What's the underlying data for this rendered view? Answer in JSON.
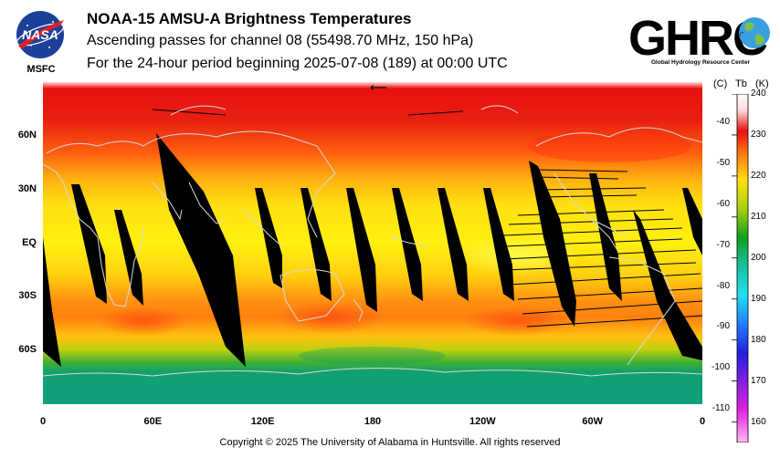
{
  "header": {
    "title": "NOAA-15 AMSU-A Brightness Temperatures",
    "subtitle": "Ascending passes for channel 08 (55498.70 MHz, 150 hPa)",
    "period": "For the 24-hour period beginning 2025-07-08 (189) at 00:00 UTC"
  },
  "logos": {
    "nasa": {
      "text": "NASA",
      "label": "MSFC",
      "icon": "nasa-meatball-icon"
    },
    "ghrc": {
      "text": "GHRC",
      "subtitle": "Global Hydrology Resource Center",
      "icon": "globe-icon"
    }
  },
  "map": {
    "projection": "equirectangular",
    "lon_range": [
      0,
      360
    ],
    "lat_range": [
      -90,
      90
    ],
    "lat_labels": [
      "60N",
      "30N",
      "EQ",
      "30S",
      "60S"
    ],
    "lat_values": [
      60,
      30,
      0,
      -30,
      -60
    ],
    "lon_labels": [
      "0",
      "60E",
      "120E",
      "180",
      "120W",
      "60W",
      "0"
    ],
    "lon_values": [
      0,
      60,
      120,
      180,
      240,
      300,
      360
    ],
    "no_data_color": "#000000",
    "coastline_color": "#d8d8d8",
    "orbit_direction_marker": "⟵"
  },
  "colorbar": {
    "unit_c": "(C)",
    "unit_tb": "Tb",
    "unit_k": "(K)",
    "celsius_ticks": [
      "-40",
      "-50",
      "-60",
      "-70",
      "-80",
      "-90",
      "-100",
      "-110"
    ],
    "celsius_values": [
      -40,
      -50,
      -60,
      -70,
      -80,
      -90,
      -100,
      -110
    ],
    "kelvin_ticks": [
      "240",
      "230",
      "220",
      "210",
      "200",
      "190",
      "180",
      "170",
      "160"
    ],
    "kelvin_values": [
      240,
      230,
      220,
      210,
      200,
      190,
      180,
      170,
      160
    ],
    "range_k": [
      155,
      240
    ],
    "color_stops": [
      {
        "k": 240,
        "color": "#ffffff"
      },
      {
        "k": 236,
        "color": "#ffd8d8"
      },
      {
        "k": 231,
        "color": "#e81010"
      },
      {
        "k": 225,
        "color": "#ff8010"
      },
      {
        "k": 219,
        "color": "#ffe010"
      },
      {
        "k": 212,
        "color": "#a8d010"
      },
      {
        "k": 205,
        "color": "#10a020"
      },
      {
        "k": 198,
        "color": "#18c0a0"
      },
      {
        "k": 191,
        "color": "#20e0f0"
      },
      {
        "k": 184,
        "color": "#2080ff"
      },
      {
        "k": 177,
        "color": "#2020e0"
      },
      {
        "k": 170,
        "color": "#8020e0"
      },
      {
        "k": 163,
        "color": "#e020e0"
      },
      {
        "k": 155,
        "color": "#ffb8f0"
      }
    ]
  },
  "footer": {
    "copyright": "Copyright © 2025 The University of Alabama in Huntsville.  All rights reserved"
  }
}
